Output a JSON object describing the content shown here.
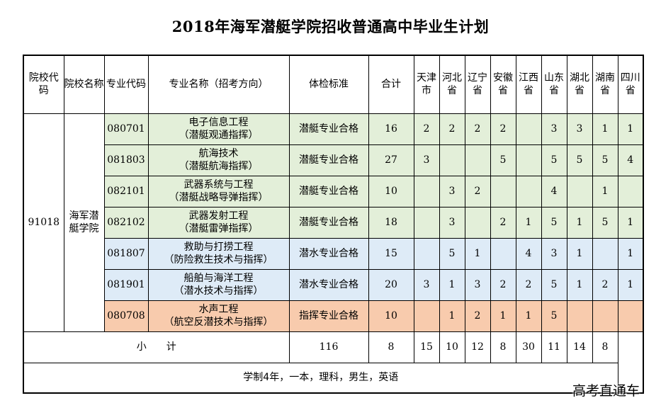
{
  "title": "2018年海军潜艇学院招收普通高中毕业生计划",
  "headers": {
    "school_code": "院校代码",
    "school_name": "院校名称",
    "major_code": "专业代码",
    "major_name": "专业名称（招考方向）",
    "physical_standard": "体检标准",
    "total": "合计",
    "provinces": [
      "天津市",
      "河北省",
      "辽宁省",
      "安徽省",
      "江西省",
      "山东省",
      "湖北省",
      "湖南省",
      "四川省"
    ]
  },
  "school_code": "91018",
  "school_name": "海军潜艇学院",
  "rows": [
    {
      "code": "080701",
      "name": "电子信息工程",
      "direction": "（潜艇观通指挥）",
      "standard": "潜艇专业合格",
      "total": "16",
      "counts": [
        "2",
        "2",
        "2",
        "2",
        "",
        "3",
        "3",
        "1",
        "1"
      ],
      "color": "green"
    },
    {
      "code": "081803",
      "name": "航海技术",
      "direction": "（潜艇航海指挥）",
      "standard": "潜艇专业合格",
      "total": "27",
      "counts": [
        "3",
        "",
        "",
        "5",
        "",
        "5",
        "5",
        "5",
        "4"
      ],
      "color": "green"
    },
    {
      "code": "082101",
      "name": "武器系统与工程",
      "direction": "（潜艇战略导弹指挥）",
      "standard": "潜艇专业合格",
      "total": "10",
      "counts": [
        "",
        "3",
        "2",
        "",
        "",
        "4",
        "",
        "1",
        ""
      ],
      "color": "green"
    },
    {
      "code": "082102",
      "name": "武器发射工程",
      "direction": "（潜艇雷弹指挥）",
      "standard": "潜艇专业合格",
      "total": "18",
      "counts": [
        "",
        "3",
        "",
        "2",
        "1",
        "5",
        "1",
        "5",
        "1"
      ],
      "color": "green"
    },
    {
      "code": "081807",
      "name": "救助与打捞工程",
      "direction": "（防险救生技术与指挥）",
      "standard": "潜水专业合格",
      "total": "15",
      "counts": [
        "",
        "5",
        "1",
        "",
        "4",
        "3",
        "1",
        "",
        "1"
      ],
      "color": "blue"
    },
    {
      "code": "081901",
      "name": "船舶与海洋工程",
      "direction": "（潜水技术与指挥）",
      "standard": "潜水专业合格",
      "total": "20",
      "counts": [
        "3",
        "1",
        "3",
        "2",
        "2",
        "5",
        "1",
        "2",
        "1"
      ],
      "color": "blue"
    },
    {
      "code": "080708",
      "name": "水声工程",
      "direction": "（航空反潜技术与指挥）",
      "standard": "指挥专业合格",
      "total": "10",
      "counts": [
        "",
        "1",
        "2",
        "1",
        "1",
        "5",
        "",
        "",
        ""
      ],
      "color": "orange"
    }
  ],
  "subtotal": {
    "label": "小　　计",
    "total": "116",
    "counts": [
      "8",
      "15",
      "10",
      "12",
      "8",
      "30",
      "11",
      "14",
      "8"
    ]
  },
  "footnote": "学制4年，一本，理科，男生，英语",
  "watermark": "高考直通车"
}
